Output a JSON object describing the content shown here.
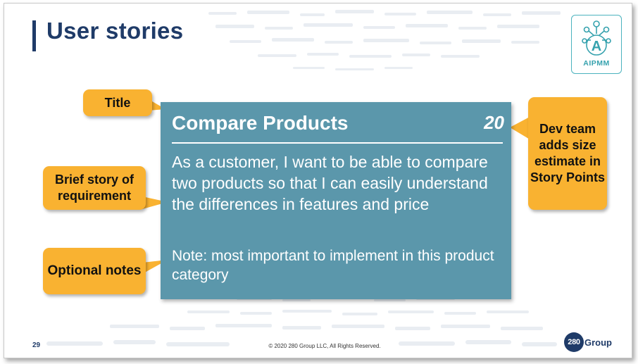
{
  "slide": {
    "title": "User stories",
    "number": "29",
    "copyright": "© 2020 280 Group LLC, All Rights Reserved."
  },
  "logo": {
    "text": "AIPMM",
    "icon": "network-a-icon",
    "accent_color": "#4bb3be"
  },
  "story_card": {
    "title": "Compare Products",
    "points": "20",
    "story": "As a customer, I want to be able to compare two products so that I can easily understand the differences in features and price",
    "note": "Note: most important to implement in this product category",
    "color": "#5b97ab"
  },
  "callouts": {
    "title": "Title",
    "story": "Brief story of requirement",
    "notes": "Optional notes",
    "dev_team": "Dev team adds size estimate in Story Points",
    "color": "#f9b231"
  },
  "company": {
    "number": "280",
    "word": "Group",
    "color": "#1f3b68"
  }
}
